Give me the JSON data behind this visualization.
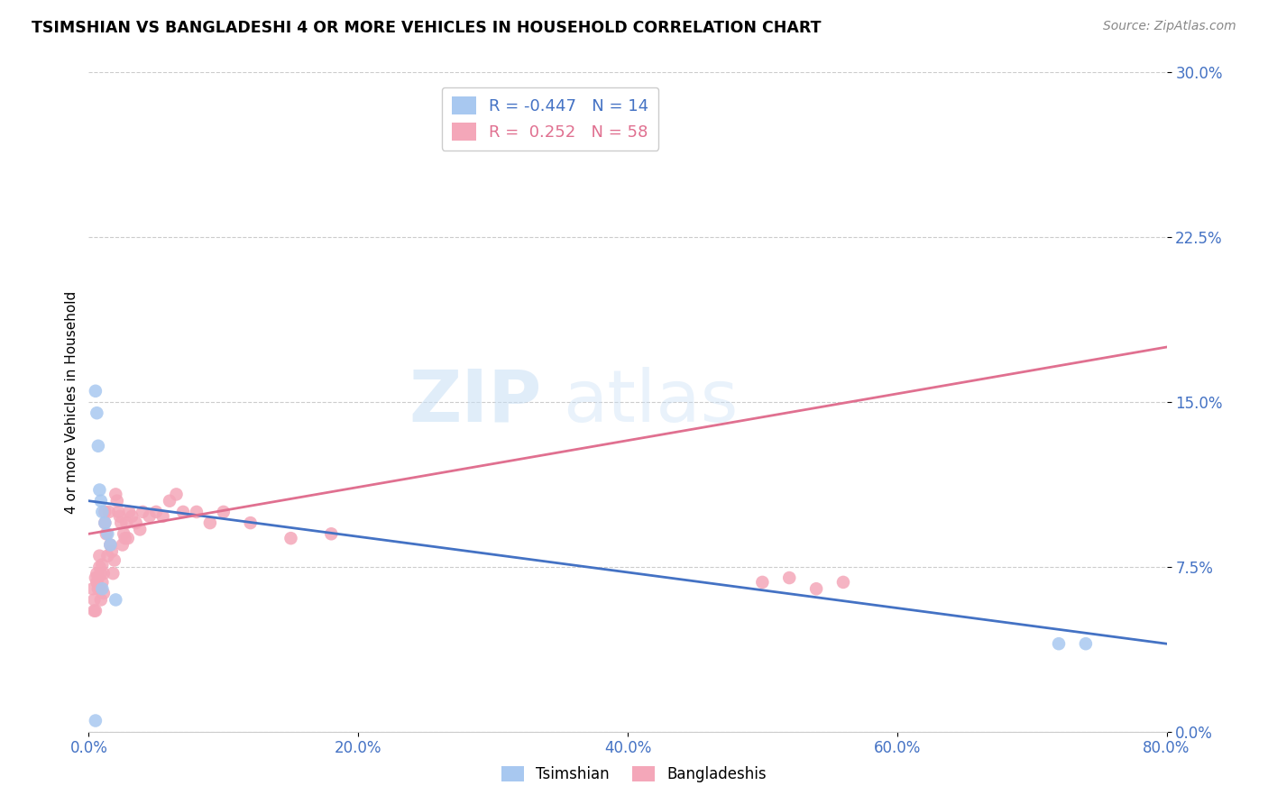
{
  "title": "TSIMSHIAN VS BANGLADESHI 4 OR MORE VEHICLES IN HOUSEHOLD CORRELATION CHART",
  "source": "Source: ZipAtlas.com",
  "ylabel": "4 or more Vehicles in Household",
  "xlabel_ticks": [
    "0.0%",
    "20.0%",
    "40.0%",
    "60.0%",
    "80.0%"
  ],
  "ylabel_ticks": [
    "0.0%",
    "7.5%",
    "15.0%",
    "22.5%",
    "30.0%"
  ],
  "xlim": [
    0.0,
    0.8
  ],
  "ylim": [
    0.0,
    0.3
  ],
  "tsimshian_color": "#a8c8f0",
  "bangladeshi_color": "#f4a7b9",
  "tsimshian_line_color": "#4472c4",
  "bangladeshi_line_color": "#e07090",
  "R_tsimshian": -0.447,
  "N_tsimshian": 14,
  "R_bangladeshi": 0.252,
  "N_bangladeshi": 58,
  "tsimshian_x": [
    0.005,
    0.006,
    0.007,
    0.008,
    0.009,
    0.01,
    0.012,
    0.014,
    0.016,
    0.02,
    0.72,
    0.74,
    0.005,
    0.01
  ],
  "tsimshian_y": [
    0.155,
    0.145,
    0.13,
    0.11,
    0.105,
    0.1,
    0.095,
    0.09,
    0.085,
    0.06,
    0.04,
    0.04,
    0.005,
    0.065
  ],
  "bangladeshi_x": [
    0.003,
    0.004,
    0.004,
    0.005,
    0.005,
    0.006,
    0.006,
    0.007,
    0.007,
    0.008,
    0.008,
    0.009,
    0.009,
    0.009,
    0.01,
    0.01,
    0.011,
    0.011,
    0.012,
    0.012,
    0.013,
    0.014,
    0.015,
    0.016,
    0.017,
    0.018,
    0.019,
    0.02,
    0.021,
    0.022,
    0.023,
    0.024,
    0.025,
    0.026,
    0.027,
    0.028,
    0.029,
    0.03,
    0.032,
    0.035,
    0.038,
    0.04,
    0.045,
    0.05,
    0.055,
    0.06,
    0.065,
    0.07,
    0.08,
    0.09,
    0.1,
    0.12,
    0.15,
    0.18,
    0.5,
    0.52,
    0.54,
    0.56
  ],
  "bangladeshi_y": [
    0.065,
    0.06,
    0.055,
    0.07,
    0.055,
    0.068,
    0.072,
    0.065,
    0.07,
    0.075,
    0.08,
    0.072,
    0.065,
    0.06,
    0.068,
    0.076,
    0.063,
    0.072,
    0.095,
    0.1,
    0.09,
    0.08,
    0.1,
    0.085,
    0.082,
    0.072,
    0.078,
    0.108,
    0.105,
    0.1,
    0.098,
    0.095,
    0.085,
    0.09,
    0.088,
    0.095,
    0.088,
    0.1,
    0.098,
    0.095,
    0.092,
    0.1,
    0.098,
    0.1,
    0.098,
    0.105,
    0.108,
    0.1,
    0.1,
    0.095,
    0.1,
    0.095,
    0.088,
    0.09,
    0.068,
    0.07,
    0.065,
    0.068
  ],
  "line_tsimshian": {
    "x0": 0.0,
    "y0": 0.105,
    "x1": 0.8,
    "y1": 0.04
  },
  "line_bangladeshi": {
    "x0": 0.0,
    "y0": 0.09,
    "x1": 0.8,
    "y1": 0.175
  }
}
